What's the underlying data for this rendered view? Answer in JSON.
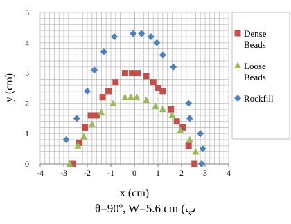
{
  "chart_data": {
    "type": "scatter",
    "xlabel": "x (cm)",
    "ylabel": "y (cm)",
    "xlim": [
      -4,
      4
    ],
    "ylim": [
      0,
      5
    ],
    "x_ticks": [
      "-4",
      "-3",
      "-2",
      "-1",
      "0",
      "1",
      "2",
      "3",
      "4"
    ],
    "y_ticks": [
      "0",
      "1",
      "2",
      "3",
      "4",
      "5"
    ],
    "grid": true,
    "grid_minor_step": 0.2,
    "legend_position": "right",
    "series": [
      {
        "name": "Dense Beads",
        "legend_lines": [
          "Dense",
          "Beads"
        ],
        "marker": "square",
        "color": "#c0504d",
        "x": [
          -2.6,
          -2.35,
          -2.1,
          -1.85,
          -1.6,
          -1.35,
          -1.1,
          -0.8,
          -0.4,
          -0.1,
          0.15,
          0.5,
          0.8,
          1.0,
          1.2,
          1.55,
          1.8,
          2.05,
          2.3,
          2.55
        ],
        "y": [
          0,
          0.7,
          1.2,
          1.6,
          1.6,
          2.2,
          2.4,
          2.7,
          3.0,
          3.0,
          3.0,
          2.9,
          2.7,
          2.5,
          2.4,
          1.8,
          1.4,
          1.2,
          0.6,
          0
        ]
      },
      {
        "name": "Loose Beads",
        "legend_lines": [
          "Loose",
          "Beads"
        ],
        "marker": "triangle",
        "color": "#9bbb59",
        "x": [
          -2.75,
          -2.4,
          -2.15,
          -1.8,
          -1.4,
          -0.9,
          -0.4,
          -0.15,
          0.1,
          0.5,
          0.9,
          1.2,
          1.6,
          1.95,
          2.35,
          2.6
        ],
        "y": [
          0.0,
          0.6,
          0.9,
          1.3,
          1.7,
          2.0,
          2.2,
          2.2,
          2.2,
          2.1,
          1.9,
          1.8,
          1.6,
          1.1,
          0.8,
          0.4
        ]
      },
      {
        "name": "Rockfill",
        "legend_lines": [
          "Rockfill"
        ],
        "marker": "diamond",
        "color": "#4f81bd",
        "x": [
          -2.9,
          -2.45,
          -2.0,
          -1.7,
          -1.3,
          -0.85,
          -0.05,
          0.3,
          0.7,
          0.95,
          1.2,
          1.65,
          2.3,
          2.35,
          2.8,
          2.85,
          2.9
        ],
        "y": [
          0.8,
          1.5,
          2.4,
          3.1,
          3.7,
          4.2,
          4.3,
          4.3,
          4.2,
          4.0,
          3.6,
          3.2,
          2.0,
          1.5,
          1.0,
          0.0,
          0.5
        ]
      }
    ]
  },
  "caption": "θ=90º, W=5.6 cm (پ"
}
